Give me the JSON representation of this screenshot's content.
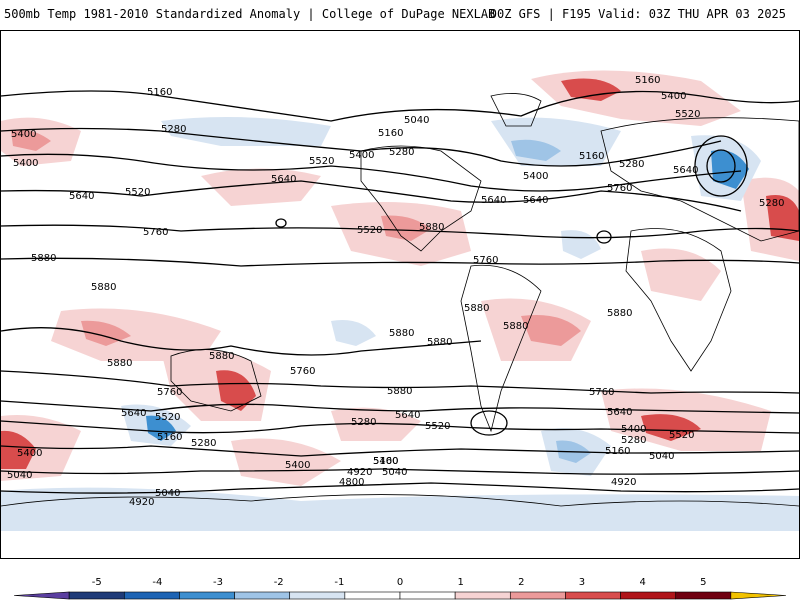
{
  "header": {
    "title_left": "500mb Temp 1981-2010 Standardized Anomaly | College of DuPage NEXLAB",
    "title_right": "00Z GFS | F195 Valid: 03Z THU APR 03 2025"
  },
  "map": {
    "projection": "equirectangular global",
    "contour_labels": [
      "5160",
      "5400",
      "5040",
      "5160",
      "5160",
      "5400",
      "5520",
      "5400",
      "5280",
      "5160",
      "5280",
      "5280",
      "5520",
      "5400",
      "5280",
      "5640",
      "5640",
      "5640",
      "5520",
      "5640",
      "5400",
      "5760",
      "5640",
      "5520",
      "5760",
      "5880",
      "5760",
      "5880",
      "5880",
      "5880",
      "5880",
      "5880",
      "5880",
      "5880",
      "5880",
      "5760",
      "5760",
      "5880",
      "5760",
      "5880",
      "5640",
      "5520",
      "5640",
      "5400",
      "5280",
      "5160",
      "5280",
      "5520",
      "5640",
      "5400",
      "5520",
      "5280",
      "5160",
      "5040",
      "5400",
      "5040",
      "5400",
      "5160",
      "4920",
      "5040",
      "4800",
      "5040",
      "4920",
      "4920"
    ],
    "colors": {
      "warm_1": "#f6d3d3",
      "warm_2": "#ec9a9a",
      "warm_3": "#d84c4c",
      "warm_4": "#b0151a",
      "cold_1": "#d7e4f2",
      "cold_2": "#9fc4e6",
      "cold_3": "#3d8fd0",
      "land_outline": "#000000",
      "contour": "#000000"
    }
  },
  "legend": {
    "ticks": [
      "-5",
      "-4",
      "-3",
      "-2",
      "-1",
      "0",
      "1",
      "2",
      "3",
      "4",
      "5"
    ],
    "bins": [
      {
        "color": "#5b3fa0"
      },
      {
        "color": "#1f3b78"
      },
      {
        "color": "#1e64b4"
      },
      {
        "color": "#3d8fd0"
      },
      {
        "color": "#9fc4e6"
      },
      {
        "color": "#d7e4f2"
      },
      {
        "color": "#ffffff"
      },
      {
        "color": "#ffffff"
      },
      {
        "color": "#f6d3d3"
      },
      {
        "color": "#ec9a9a"
      },
      {
        "color": "#d84c4c"
      },
      {
        "color": "#b0151a"
      },
      {
        "color": "#700010"
      },
      {
        "color": "#f2c200"
      }
    ]
  }
}
